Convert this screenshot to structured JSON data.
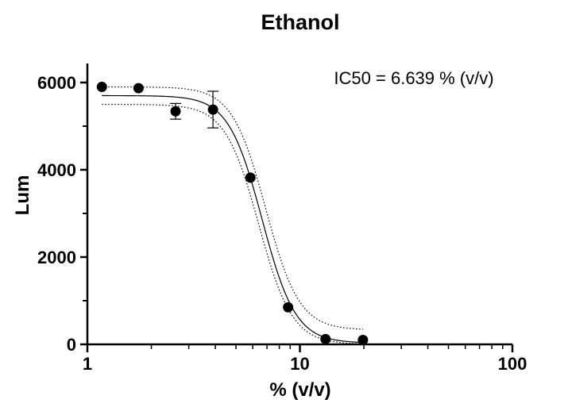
{
  "chart_data": {
    "type": "scatter",
    "title": "Ethanol",
    "xlabel": "% (v/v)",
    "ylabel": "Lum",
    "annotation": "IC50 = 6.639 % (v/v)",
    "x_scale": "log",
    "xlim": [
      1,
      100
    ],
    "ylim": [
      0,
      6000
    ],
    "x_ticks": [
      "1",
      "10",
      "100"
    ],
    "y_ticks": [
      "0",
      "2000",
      "4000",
      "6000"
    ],
    "grid": false,
    "points": [
      {
        "x": 1.17,
        "y": 5900
      },
      {
        "x": 1.74,
        "y": 5870
      },
      {
        "x": 2.6,
        "y": 5340,
        "err": 180
      },
      {
        "x": 3.9,
        "y": 5380,
        "err": 420
      },
      {
        "x": 5.85,
        "y": 3820
      },
      {
        "x": 8.8,
        "y": 850
      },
      {
        "x": 13.2,
        "y": 120
      },
      {
        "x": 19.8,
        "y": 100
      }
    ],
    "fit": {
      "top": 5700,
      "bottom": 30,
      "ic50": 6.639,
      "hill": 5.5
    },
    "confidence_band": {
      "upper": {
        "top": 5900,
        "bottom": 330,
        "ic50": 6.9
      },
      "lower": {
        "top": 5500,
        "bottom": 0,
        "ic50": 6.4
      }
    }
  }
}
